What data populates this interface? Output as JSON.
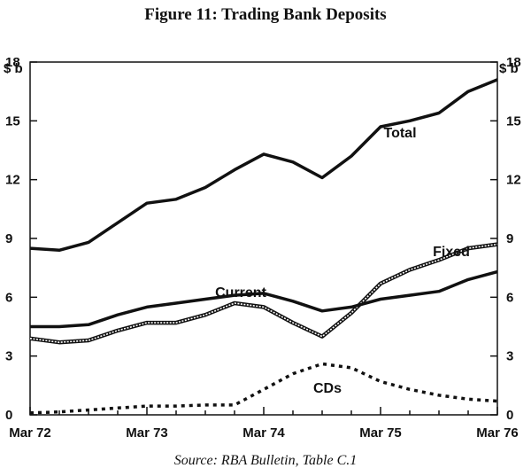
{
  "chart_data": {
    "type": "line",
    "title": "Figure 11: Trading Bank Deposits",
    "source": "Source: RBA Bulletin, Table C.1",
    "ylabel_left": "$ b",
    "ylabel_right": "$ b",
    "ylim": [
      0,
      18
    ],
    "yticks": [
      0,
      3,
      6,
      9,
      12,
      15,
      18
    ],
    "xlim": [
      0,
      16
    ],
    "xticks": [
      {
        "pos": 0,
        "label": "Mar 72"
      },
      {
        "pos": 4,
        "label": "Mar 73"
      },
      {
        "pos": 8,
        "label": "Mar 74"
      },
      {
        "pos": 12,
        "label": "Mar 75"
      },
      {
        "pos": 16,
        "label": "Mar 76"
      }
    ],
    "x": [
      0,
      1,
      2,
      3,
      4,
      5,
      6,
      7,
      8,
      9,
      10,
      11,
      12,
      13,
      14,
      15,
      16
    ],
    "series": [
      {
        "name": "Total",
        "style": "solid",
        "values": [
          8.5,
          8.4,
          8.8,
          9.8,
          10.8,
          11.0,
          11.6,
          12.5,
          13.3,
          12.9,
          12.1,
          13.2,
          14.7,
          15.0,
          15.4,
          16.5,
          17.1
        ]
      },
      {
        "name": "Fixed",
        "style": "double",
        "values": [
          3.9,
          3.7,
          3.8,
          4.3,
          4.7,
          4.7,
          5.1,
          5.7,
          5.5,
          4.7,
          4.0,
          5.2,
          6.7,
          7.4,
          7.9,
          8.5,
          8.7
        ]
      },
      {
        "name": "Current",
        "style": "solid",
        "values": [
          4.5,
          4.5,
          4.6,
          5.1,
          5.5,
          5.7,
          5.9,
          6.1,
          6.2,
          5.8,
          5.3,
          5.5,
          5.9,
          6.1,
          6.3,
          6.9,
          7.3
        ]
      },
      {
        "name": "CDs",
        "style": "dotted",
        "values": [
          0.1,
          0.15,
          0.25,
          0.35,
          0.45,
          0.45,
          0.5,
          0.5,
          1.3,
          2.1,
          2.6,
          2.4,
          1.7,
          1.3,
          1.0,
          0.8,
          0.7
        ]
      }
    ],
    "grid": false
  }
}
